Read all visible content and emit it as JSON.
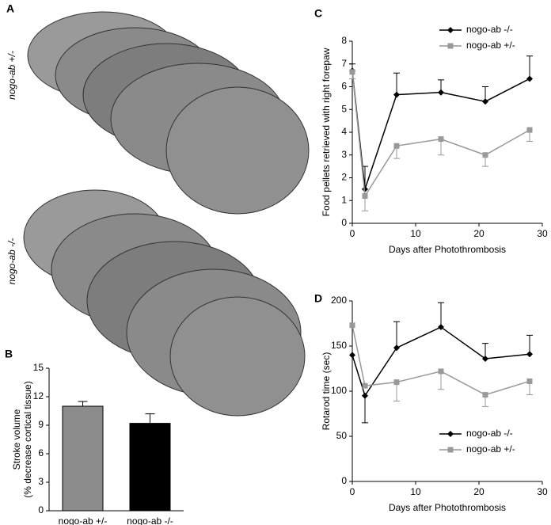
{
  "panel_a": {
    "panel_label": "A",
    "group_labels": [
      "nogo-ab +/-",
      "nogo-ab -/-"
    ]
  },
  "chart_data": [
    {
      "type": "bar",
      "panel_label": "B",
      "ylabel": [
        "Stroke volume",
        "(% decrease cortical tissue)"
      ],
      "categories": [
        "nogo-ab +/-",
        "nogo-ab -/-"
      ],
      "values": [
        11.0,
        9.2
      ],
      "errors": [
        0.5,
        1.0
      ],
      "colors": [
        "#8c8c8c",
        "#000000"
      ],
      "ylim": [
        0,
        15
      ],
      "yticks": [
        0,
        3,
        6,
        9,
        12,
        15
      ]
    },
    {
      "type": "line",
      "panel_label": "C",
      "xlabel": "Days after Photothrombosis",
      "ylabel": "Food pellets retrieved with right forepaw",
      "x": [
        0,
        2,
        7,
        14,
        21,
        28
      ],
      "xlim": [
        0,
        30
      ],
      "xticks": [
        0,
        10,
        20,
        30
      ],
      "ylim": [
        0,
        8
      ],
      "yticks": [
        0,
        1,
        2,
        3,
        4,
        5,
        6,
        7,
        8
      ],
      "legend": "top-right",
      "series": [
        {
          "name": "nogo-ab -/-",
          "color": "#000000",
          "marker": "diamond",
          "values": [
            6.7,
            1.5,
            5.65,
            5.75,
            5.35,
            6.35
          ],
          "errors": [
            0.3,
            1.0,
            0.95,
            0.55,
            0.65,
            1.0
          ],
          "error_direction": [
            "up",
            "up",
            "up",
            "up",
            "up",
            "up"
          ]
        },
        {
          "name": "nogo-ab +/-",
          "color": "#999999",
          "marker": "square",
          "values": [
            6.65,
            1.2,
            3.4,
            3.7,
            3.0,
            4.1
          ],
          "errors": [
            0.3,
            0.65,
            0.55,
            0.7,
            0.5,
            0.5
          ],
          "error_direction": [
            "down",
            "down",
            "down",
            "down",
            "down",
            "down"
          ]
        }
      ]
    },
    {
      "type": "line",
      "panel_label": "D",
      "xlabel": "Days after Photothrombosis",
      "ylabel": "Rotarod time (sec)",
      "x": [
        0,
        2,
        7,
        14,
        21,
        28
      ],
      "xlim": [
        0,
        30
      ],
      "xticks": [
        0,
        10,
        20,
        30
      ],
      "ylim": [
        0,
        200
      ],
      "yticks": [
        0,
        50,
        100,
        150,
        200
      ],
      "legend": "bottom-right",
      "series": [
        {
          "name": "nogo-ab -/-",
          "color": "#000000",
          "marker": "diamond",
          "values": [
            140,
            95,
            148,
            171,
            136,
            141
          ],
          "errors": [
            null,
            30,
            29,
            27,
            17,
            21
          ],
          "error_direction": [
            "up",
            "down",
            "up",
            "up",
            "up",
            "up"
          ]
        },
        {
          "name": "nogo-ab +/-",
          "color": "#999999",
          "marker": "square",
          "values": [
            173,
            106,
            110,
            122,
            96,
            111
          ],
          "errors": [
            null,
            null,
            21,
            20,
            13,
            15
          ],
          "error_direction": [
            "down",
            "down",
            "down",
            "down",
            "down",
            "down"
          ]
        }
      ]
    }
  ]
}
